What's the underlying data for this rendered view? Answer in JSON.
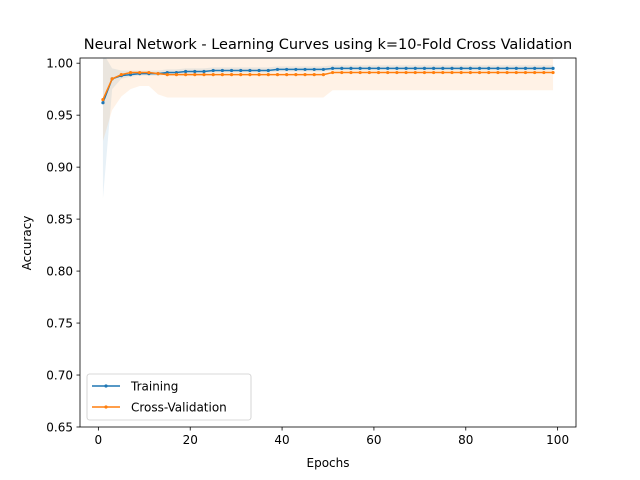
{
  "chart_data": {
    "type": "line",
    "title": "Neural Network - Learning Curves using k=10-Fold Cross Validation",
    "xlabel": "Epochs",
    "ylabel": "Accuracy",
    "xlim": [
      -4,
      104
    ],
    "ylim": [
      0.65,
      1.005
    ],
    "xticks": [
      0,
      20,
      40,
      60,
      80,
      100
    ],
    "xtick_labels": [
      "0",
      "20",
      "40",
      "60",
      "80",
      "100"
    ],
    "yticks": [
      0.65,
      0.7,
      0.75,
      0.8,
      0.85,
      0.9,
      0.95,
      1.0
    ],
    "ytick_labels": [
      "0.65",
      "0.70",
      "0.75",
      "0.80",
      "0.85",
      "0.90",
      "0.95",
      "1.00"
    ],
    "grid": false,
    "legend_position": "lower-left",
    "x_start": 1,
    "x_step": 2,
    "series": [
      {
        "name": "Training",
        "color": "#1f77b4",
        "values": [
          0.962,
          0.985,
          0.988,
          0.989,
          0.99,
          0.99,
          0.99,
          0.991,
          0.991,
          0.992,
          0.992,
          0.992,
          0.993,
          0.993,
          0.993,
          0.993,
          0.993,
          0.993,
          0.993,
          0.994,
          0.994,
          0.994,
          0.994,
          0.994,
          0.994,
          0.995,
          0.995,
          0.995,
          0.995,
          0.995,
          0.995,
          0.995,
          0.995,
          0.995,
          0.995,
          0.995,
          0.995,
          0.995,
          0.995,
          0.995,
          0.995,
          0.995,
          0.995,
          0.995,
          0.995,
          0.995,
          0.995,
          0.995,
          0.995,
          0.995
        ],
        "band_lower": [
          0.87,
          0.975,
          0.985,
          0.987,
          0.988,
          0.988,
          0.988,
          0.989,
          0.989,
          0.99,
          0.99,
          0.99,
          0.991,
          0.991,
          0.991,
          0.991,
          0.991,
          0.991,
          0.991,
          0.992,
          0.992,
          0.992,
          0.992,
          0.992,
          0.992,
          0.993,
          0.993,
          0.993,
          0.993,
          0.993,
          0.993,
          0.993,
          0.993,
          0.993,
          0.993,
          0.993,
          0.993,
          0.993,
          0.993,
          0.993,
          0.993,
          0.993,
          0.993,
          0.993,
          0.993,
          0.993,
          0.993,
          0.993,
          0.993,
          0.993
        ],
        "band_upper": [
          1.01,
          0.995,
          0.993,
          0.993,
          0.993,
          0.993,
          0.993,
          0.994,
          0.994,
          0.995,
          0.995,
          0.995,
          0.996,
          0.996,
          0.996,
          0.996,
          0.996,
          0.996,
          0.996,
          0.997,
          0.997,
          0.997,
          0.997,
          0.997,
          0.997,
          0.998,
          0.998,
          0.998,
          0.998,
          0.998,
          0.998,
          0.998,
          0.998,
          0.998,
          0.998,
          0.998,
          0.998,
          0.998,
          0.998,
          0.998,
          0.998,
          0.998,
          0.998,
          0.998,
          0.998,
          0.998,
          0.998,
          0.998,
          0.998,
          0.998
        ]
      },
      {
        "name": "Cross-Validation",
        "color": "#ff7f0e",
        "values": [
          0.965,
          0.985,
          0.989,
          0.991,
          0.991,
          0.991,
          0.99,
          0.989,
          0.989,
          0.989,
          0.989,
          0.989,
          0.989,
          0.989,
          0.989,
          0.989,
          0.989,
          0.989,
          0.989,
          0.989,
          0.989,
          0.989,
          0.989,
          0.989,
          0.989,
          0.991,
          0.991,
          0.991,
          0.991,
          0.991,
          0.991,
          0.991,
          0.991,
          0.991,
          0.991,
          0.991,
          0.991,
          0.991,
          0.991,
          0.991,
          0.991,
          0.991,
          0.991,
          0.991,
          0.991,
          0.991,
          0.991,
          0.991,
          0.991,
          0.991
        ],
        "band_lower": [
          0.925,
          0.955,
          0.968,
          0.975,
          0.978,
          0.978,
          0.97,
          0.967,
          0.967,
          0.967,
          0.967,
          0.967,
          0.967,
          0.967,
          0.967,
          0.967,
          0.967,
          0.967,
          0.967,
          0.967,
          0.967,
          0.967,
          0.967,
          0.967,
          0.967,
          0.974,
          0.974,
          0.974,
          0.974,
          0.974,
          0.974,
          0.974,
          0.974,
          0.974,
          0.974,
          0.974,
          0.974,
          0.974,
          0.974,
          0.974,
          0.974,
          0.974,
          0.974,
          0.974,
          0.974,
          0.974,
          0.974,
          0.974,
          0.974,
          0.974
        ],
        "band_upper": [
          1.004,
          1.004,
          1.004,
          1.004,
          1.004,
          1.004,
          1.004,
          1.004,
          1.004,
          1.004,
          1.004,
          1.004,
          1.004,
          1.004,
          1.004,
          1.004,
          1.004,
          1.004,
          1.004,
          1.004,
          1.004,
          1.004,
          1.004,
          1.004,
          1.004,
          1.004,
          1.004,
          1.004,
          1.004,
          1.004,
          1.004,
          1.004,
          1.004,
          1.004,
          1.004,
          1.004,
          1.004,
          1.004,
          1.004,
          1.004,
          1.004,
          1.004,
          1.004,
          1.004,
          1.004,
          1.004,
          1.004,
          1.004,
          1.004,
          1.004
        ]
      }
    ]
  }
}
